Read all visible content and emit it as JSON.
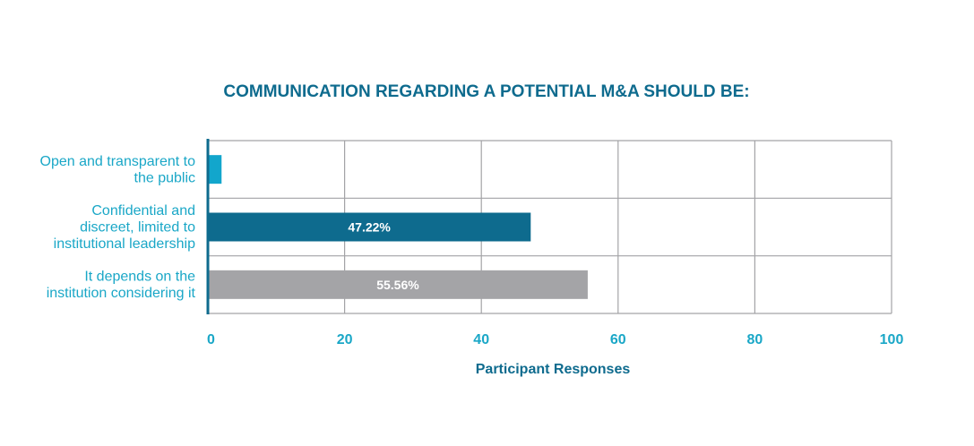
{
  "chart_data": {
    "type": "bar",
    "orientation": "horizontal",
    "title": "COMMUNICATION REGARDING A POTENTIAL M&A SHOULD BE:",
    "xlabel": "Participant Responses",
    "ylabel": "",
    "xlim": [
      0,
      100
    ],
    "ticks": [
      0,
      20,
      40,
      60,
      80,
      100
    ],
    "grid": true,
    "categories": [
      [
        "Open and transparent to",
        "the public"
      ],
      [
        "Confidential and",
        "discreet, limited to",
        "institutional leadership"
      ],
      [
        "It depends on the",
        "institution considering it"
      ]
    ],
    "values": [
      2.0,
      47.22,
      55.56
    ],
    "data_labels": [
      "",
      "47.22%",
      "55.56%"
    ],
    "colors": [
      "#12a6cc",
      "#0e6b8e",
      "#a4a4a7"
    ]
  }
}
